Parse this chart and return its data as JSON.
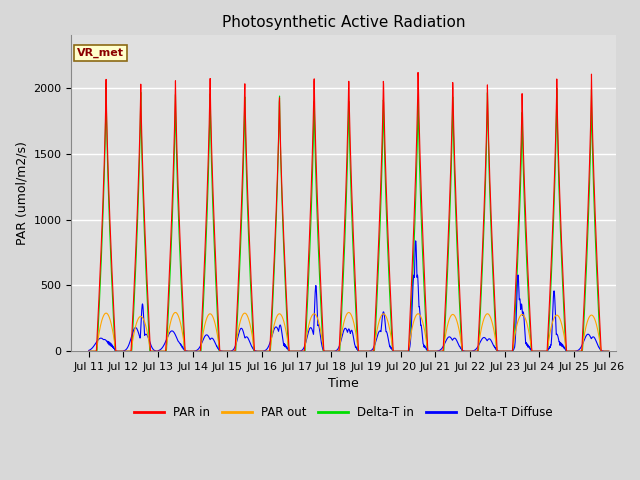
{
  "title": "Photosynthetic Active Radiation",
  "ylabel": "PAR (umol/m2/s)",
  "xlabel": "Time",
  "annotation": "VR_met",
  "ylim": [
    0,
    2400
  ],
  "xlim_start": 10.5,
  "xlim_end": 26.2,
  "xtick_labels": [
    "Jul 11",
    "Jul 12",
    "Jul 13",
    "Jul 14",
    "Jul 15",
    "Jul 16",
    "Jul 17",
    "Jul 18",
    "Jul 19",
    "Jul 20",
    "Jul 21",
    "Jul 22",
    "Jul 23",
    "Jul 24",
    "Jul 25",
    "Jul 26"
  ],
  "xtick_positions": [
    11,
    12,
    13,
    14,
    15,
    16,
    17,
    18,
    19,
    20,
    21,
    22,
    23,
    24,
    25,
    26
  ],
  "color_par_in": "#FF0000",
  "color_par_out": "#FFA500",
  "color_delta_t_in": "#00DD00",
  "color_delta_t_diffuse": "#0000FF",
  "background_color": "#E0E0E0",
  "fig_background": "#D8D8D8",
  "grid_color": "#FFFFFF",
  "title_fontsize": 11,
  "label_fontsize": 9,
  "tick_fontsize": 8
}
